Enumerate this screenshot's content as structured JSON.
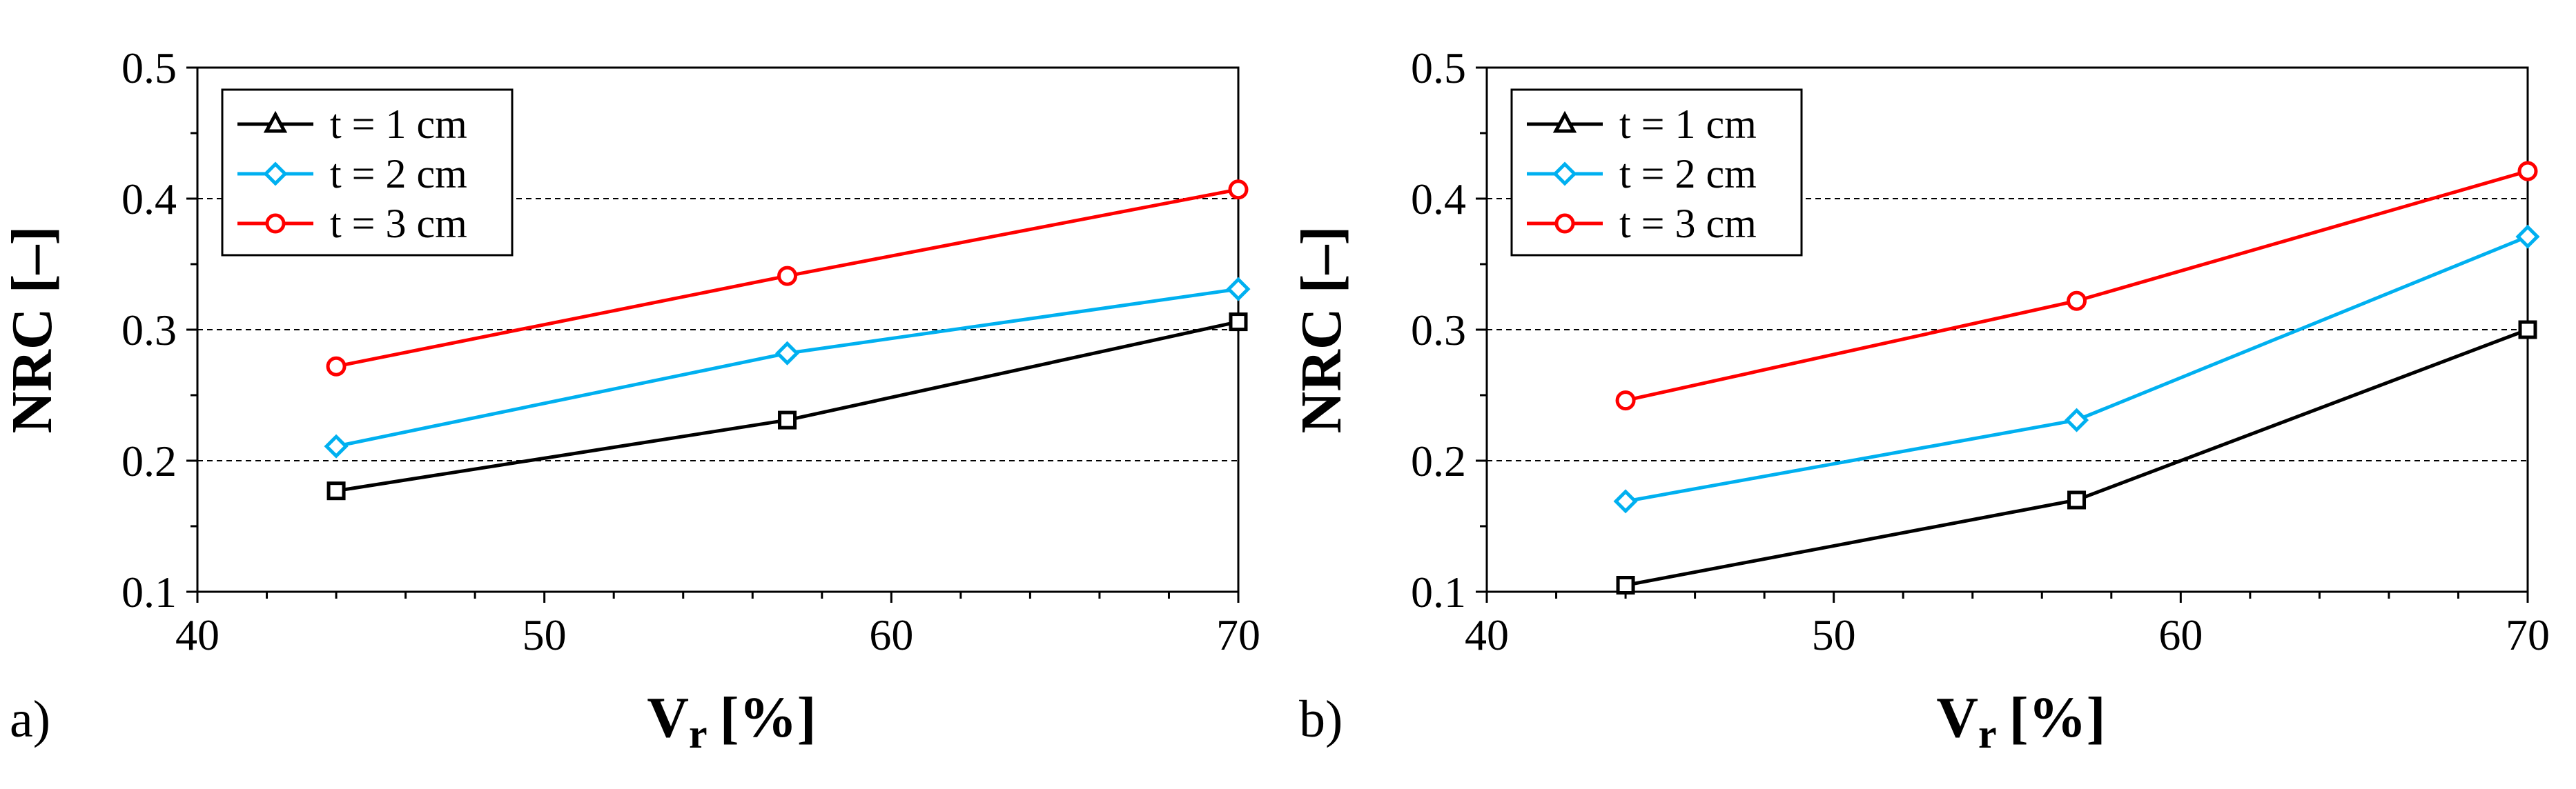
{
  "chart_data": [
    {
      "type": "line",
      "panel_label": "a)",
      "xlabel_main": "V",
      "xlabel_sub": "r",
      "xlabel_unit": "[%]",
      "ylabel": "NRC [–]",
      "xlim": [
        40,
        70
      ],
      "ylim": [
        0.1,
        0.5
      ],
      "x_ticks": [
        "40",
        "50",
        "60",
        "70"
      ],
      "y_ticks": [
        "0.1",
        "0.2",
        "0.3",
        "0.4",
        "0.5"
      ],
      "gridlines_y": [
        0.2,
        0.3,
        0.4
      ],
      "legend_position": "top-left",
      "x": [
        44,
        57,
        70
      ],
      "series": [
        {
          "name": "t = 1 cm",
          "color": "#000000",
          "legend_marker": "triangle",
          "marker": "square",
          "values": [
            0.177,
            0.231,
            0.306
          ]
        },
        {
          "name": "t = 2 cm",
          "color": "#00B0F0",
          "legend_marker": "diamond",
          "marker": "diamond",
          "values": [
            0.211,
            0.282,
            0.331
          ]
        },
        {
          "name": "t = 3 cm",
          "color": "#FF0000",
          "legend_marker": "circle",
          "marker": "circle",
          "values": [
            0.272,
            0.341,
            0.407
          ]
        }
      ]
    },
    {
      "type": "line",
      "panel_label": "b)",
      "xlabel_main": "V",
      "xlabel_sub": "r",
      "xlabel_unit": "[%]",
      "ylabel": "NRC [–]",
      "xlim": [
        40,
        70
      ],
      "ylim": [
        0.1,
        0.5
      ],
      "x_ticks": [
        "40",
        "50",
        "60",
        "70"
      ],
      "y_ticks": [
        "0.1",
        "0.2",
        "0.3",
        "0.4",
        "0.5"
      ],
      "gridlines_y": [
        0.2,
        0.3,
        0.4
      ],
      "legend_position": "top-left",
      "x": [
        44,
        57,
        70
      ],
      "series": [
        {
          "name": "t = 1 cm",
          "color": "#000000",
          "legend_marker": "triangle",
          "marker": "square",
          "values": [
            0.105,
            0.17,
            0.3
          ]
        },
        {
          "name": "t = 2 cm",
          "color": "#00B0F0",
          "legend_marker": "diamond",
          "marker": "diamond",
          "values": [
            0.169,
            0.231,
            0.371
          ]
        },
        {
          "name": "t = 3 cm",
          "color": "#FF0000",
          "legend_marker": "circle",
          "marker": "circle",
          "values": [
            0.246,
            0.322,
            0.421
          ]
        }
      ]
    }
  ]
}
